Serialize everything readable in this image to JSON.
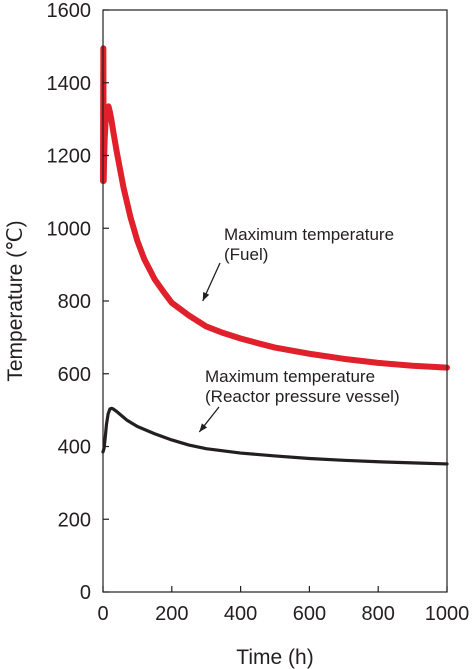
{
  "chart_data": {
    "type": "line",
    "title": "",
    "xlabel": "Time (h)",
    "ylabel": "Temperature (℃)",
    "xlim": [
      0,
      1000
    ],
    "ylim": [
      0,
      1600
    ],
    "x_ticks": [
      0,
      200,
      400,
      600,
      800,
      1000
    ],
    "y_ticks": [
      0,
      200,
      400,
      600,
      800,
      1000,
      1200,
      1400,
      1600
    ],
    "grid": false,
    "legend": "none",
    "series": [
      {
        "color": "#e0202a",
        "x": [
          0,
          0.5,
          1,
          1.5,
          2,
          3,
          5,
          8,
          12,
          16,
          20,
          25,
          30,
          40,
          50,
          60,
          80,
          100,
          120,
          150,
          180,
          200,
          250,
          300,
          350,
          400,
          450,
          500,
          600,
          700,
          800,
          900,
          1000
        ],
        "y": [
          1130,
          1300,
          1495,
          1300,
          1130,
          1180,
          1250,
          1300,
          1330,
          1335,
          1320,
          1295,
          1265,
          1210,
          1160,
          1110,
          1030,
          965,
          915,
          860,
          820,
          795,
          760,
          730,
          712,
          697,
          684,
          672,
          655,
          641,
          630,
          622,
          617
        ]
      },
      {
        "color": "#231f20",
        "x": [
          0,
          3,
          6,
          10,
          15,
          20,
          25,
          30,
          40,
          50,
          70,
          100,
          150,
          200,
          250,
          300,
          400,
          500,
          600,
          700,
          800,
          900,
          1000
        ],
        "y": [
          385,
          395,
          420,
          460,
          490,
          503,
          505,
          503,
          496,
          488,
          472,
          455,
          435,
          418,
          404,
          394,
          382,
          374,
          367,
          362,
          358,
          355,
          352
        ]
      }
    ],
    "annotations": [
      {
        "lines": [
          "Maximum temperature",
          "(Fuel)"
        ],
        "target": [
          290,
          800
        ]
      },
      {
        "lines": [
          "Maximum temperature",
          "(Reactor pressure vessel)"
        ],
        "target": [
          280,
          440
        ]
      }
    ]
  }
}
